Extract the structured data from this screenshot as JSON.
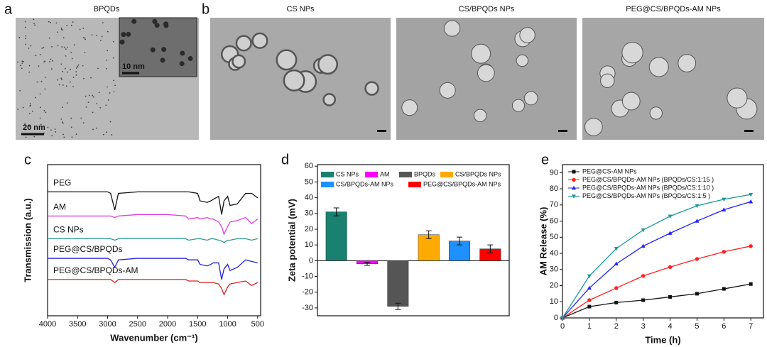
{
  "panel_labels": [
    "a",
    "b",
    "c",
    "d",
    "e"
  ],
  "images": [
    {
      "title": "BPQDs",
      "scale_bar": "20 nm",
      "inset_scale_bar": "10 nm"
    },
    {
      "title": "CS NPs"
    },
    {
      "title": "CS/BPQDs NPs"
    },
    {
      "title": "PEG@CS/BPQDs-AM NPs"
    }
  ],
  "chart_data": [
    {
      "type": "line",
      "xlabel": "Wavenumber (cm⁻¹)",
      "ylabel": "Transmission (a.u.)",
      "legend": "inline",
      "x": [
        4000,
        3500,
        3000,
        2950,
        2880,
        2820,
        2500,
        2000,
        1700,
        1650,
        1500,
        1460,
        1340,
        1280,
        1240,
        1150,
        1100,
        1060,
        1000,
        960,
        840,
        700,
        600,
        500
      ],
      "xlim": [
        4000,
        450
      ],
      "xticks": [
        4000,
        3500,
        3000,
        2500,
        2000,
        1500,
        1000,
        500
      ],
      "ylim": [
        0,
        10
      ],
      "series": [
        {
          "name": "PEG",
          "color": "#111111",
          "values": [
            8.2,
            8.2,
            8.2,
            8.1,
            7.0,
            8.1,
            8.2,
            8.2,
            8.2,
            8.2,
            8.1,
            7.6,
            7.5,
            7.6,
            7.7,
            7.9,
            6.7,
            7.6,
            7.9,
            7.3,
            7.4,
            8.1,
            8.1,
            7.8
          ]
        },
        {
          "name": "AM",
          "color": "#e040e0",
          "values": [
            6.6,
            6.6,
            6.6,
            6.6,
            6.5,
            6.6,
            6.7,
            6.7,
            6.6,
            6.4,
            6.5,
            6.4,
            6.5,
            6.4,
            6.4,
            6.2,
            5.9,
            5.4,
            5.9,
            6.2,
            6.3,
            6.5,
            6.1,
            6.4
          ]
        },
        {
          "name": "CS NPs",
          "color": "#2a9d8f",
          "values": [
            5.1,
            5.1,
            5.1,
            5.1,
            5.0,
            5.1,
            5.1,
            5.1,
            5.1,
            5.0,
            5.1,
            5.1,
            5.0,
            5.1,
            5.1,
            5.0,
            4.95,
            4.85,
            5.0,
            5.0,
            5.1,
            5.1,
            5.0,
            5.1
          ]
        },
        {
          "name": "PEG@CS/BPQDs",
          "color": "#2020e0",
          "values": [
            3.8,
            3.8,
            3.8,
            3.7,
            3.2,
            3.7,
            3.8,
            3.8,
            3.8,
            3.7,
            3.7,
            3.4,
            3.3,
            3.4,
            3.5,
            3.5,
            2.4,
            3.1,
            3.4,
            3.0,
            3.2,
            3.7,
            3.6,
            3.5
          ]
        },
        {
          "name": "PEG@CS/BPQDs-AM",
          "color": "#e02020",
          "values": [
            2.4,
            2.4,
            2.4,
            2.4,
            2.2,
            2.4,
            2.4,
            2.4,
            2.4,
            2.3,
            2.3,
            2.2,
            2.2,
            2.2,
            2.2,
            2.1,
            1.8,
            1.4,
            1.9,
            2.1,
            2.2,
            2.3,
            2.0,
            2.2
          ]
        }
      ]
    },
    {
      "type": "bar",
      "ylabel": "Zeta potential (mV)",
      "legend": "upper",
      "categories": [
        "CS NPs",
        "AM",
        "BPQDs",
        "CS/BPQDs NPs",
        "CS/BPQDs-AM NPs",
        "PEG@CS/BPQDs-AM NPs"
      ],
      "values": [
        31,
        -2,
        -29,
        16.5,
        12.5,
        7.5
      ],
      "errors": [
        2.5,
        1,
        2,
        2.5,
        2.5,
        2.5
      ],
      "colors": [
        "#1a8070",
        "#ff00ff",
        "#555555",
        "#ffaa00",
        "#1e90ff",
        "#ff0000"
      ],
      "ylim": [
        -35,
        61
      ],
      "yticks": [
        -30,
        -20,
        -10,
        0,
        10,
        20,
        30,
        40,
        50,
        60
      ]
    },
    {
      "type": "line",
      "xlabel": "Time (h)",
      "ylabel": "AM Release (%)",
      "legend": "upper left",
      "x": [
        0,
        1,
        2,
        3,
        4,
        5,
        6,
        7
      ],
      "xlim": [
        0,
        7.47
      ],
      "xticks": [
        0,
        1,
        2,
        3,
        4,
        5,
        6,
        7
      ],
      "ylim": [
        0,
        95
      ],
      "yticks": [
        0,
        10,
        20,
        30,
        40,
        50,
        60,
        70,
        80,
        90
      ],
      "series": [
        {
          "name": "PEG@CS-AM NPs",
          "color": "#111111",
          "marker": "square",
          "values": [
            0,
            7,
            9.5,
            11,
            13,
            15,
            18,
            21
          ]
        },
        {
          "name": "PEG@CS/BPQDs-AM NPs (BPQDs/CS:1:15 )",
          "color": "#ff2020",
          "marker": "circle",
          "values": [
            0,
            11,
            18.5,
            26,
            31.5,
            36.5,
            41,
            44.5
          ]
        },
        {
          "name": "PEG@CS/BPQDs-AM NPs (BPQDs/CS:1:10 )",
          "color": "#2020ff",
          "marker": "triangle",
          "values": [
            0,
            18.5,
            33.5,
            44.5,
            52.5,
            60,
            67,
            72
          ]
        },
        {
          "name": "PEG@CS/BPQDs-AM NPs (BPQDs/CS:1:5 )",
          "color": "#1a9a9a",
          "marker": "down-triangle",
          "values": [
            0,
            26,
            43,
            54.5,
            63,
            69.5,
            73.5,
            76.5
          ]
        }
      ]
    }
  ]
}
